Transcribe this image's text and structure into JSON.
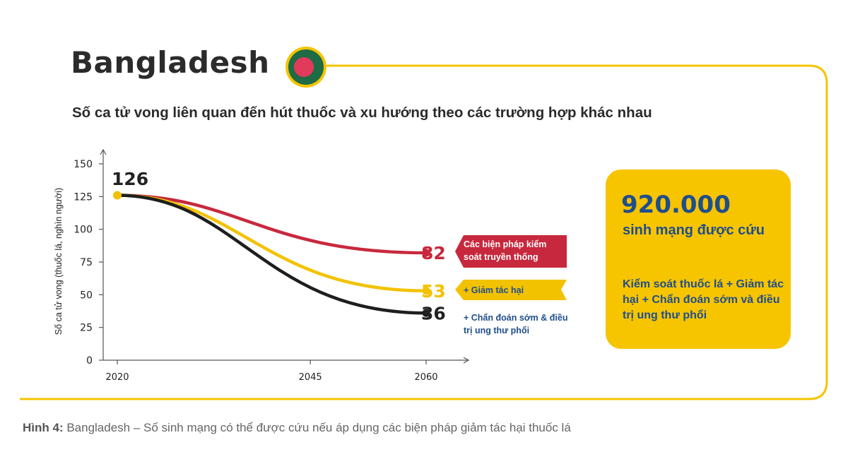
{
  "header": {
    "country": "Bangladesh",
    "subtitle": "Số ca tử vong liên quan đến hút thuốc và xu hướng theo các trường hợp khác nhau"
  },
  "flag": {
    "field_color": "#1e6b45",
    "disc_color": "#e23a5a"
  },
  "chart_data": {
    "type": "line",
    "title": "Số ca tử vong liên quan đến hút thuốc và xu hướng theo các trường hợp khác nhau",
    "ylabel": "Số ca tử vong (thuốc lá, nghìn người)",
    "xlabel": "",
    "x_ticks": [
      "2020",
      "2045",
      "2060"
    ],
    "x_range": [
      2020,
      2060
    ],
    "y_ticks": [
      0,
      25,
      50,
      75,
      100,
      125,
      150
    ],
    "ylim": [
      0,
      150
    ],
    "start_label": "126",
    "series": [
      {
        "name": "Các biện pháp kiểm soát truyền thống",
        "color": "#c8283d",
        "x": [
          2020,
          2060
        ],
        "y": [
          126,
          82
        ],
        "end_label": "82"
      },
      {
        "name": "+ Giảm tác hại",
        "color": "#f2c200",
        "x": [
          2020,
          2060
        ],
        "y": [
          126,
          53
        ],
        "end_label": "53"
      },
      {
        "name": "+ Chẩn đoán sớm & điều trị ung thư phổi",
        "color": "#1e1e1e",
        "x": [
          2020,
          2060
        ],
        "y": [
          126,
          36
        ],
        "end_label": "36"
      }
    ]
  },
  "legend": {
    "red_label": "Các biện pháp kiểm soát truyền thống",
    "yellow_label": "+ Giảm tác hại",
    "black_label": "+ Chẩn đoán sớm & điều trị ung thư phổi"
  },
  "panel": {
    "number": "920.000",
    "subtitle": "sinh mạng được cứu",
    "description": "Kiểm soát thuốc lá + Giảm tác hại + Chẩn đoán sớm và điều trị ung thư phổi"
  },
  "caption": {
    "prefix": "Hình 4:",
    "text": " Bangladesh – Số sinh mạng có thể được cứu nếu áp dụng các biện pháp giảm tác hại thuốc lá"
  },
  "colors": {
    "frame": "#f5c400",
    "red": "#c8283d",
    "yellow": "#f2c200",
    "black": "#1e1e1e",
    "blue": "#1f4e8c"
  }
}
